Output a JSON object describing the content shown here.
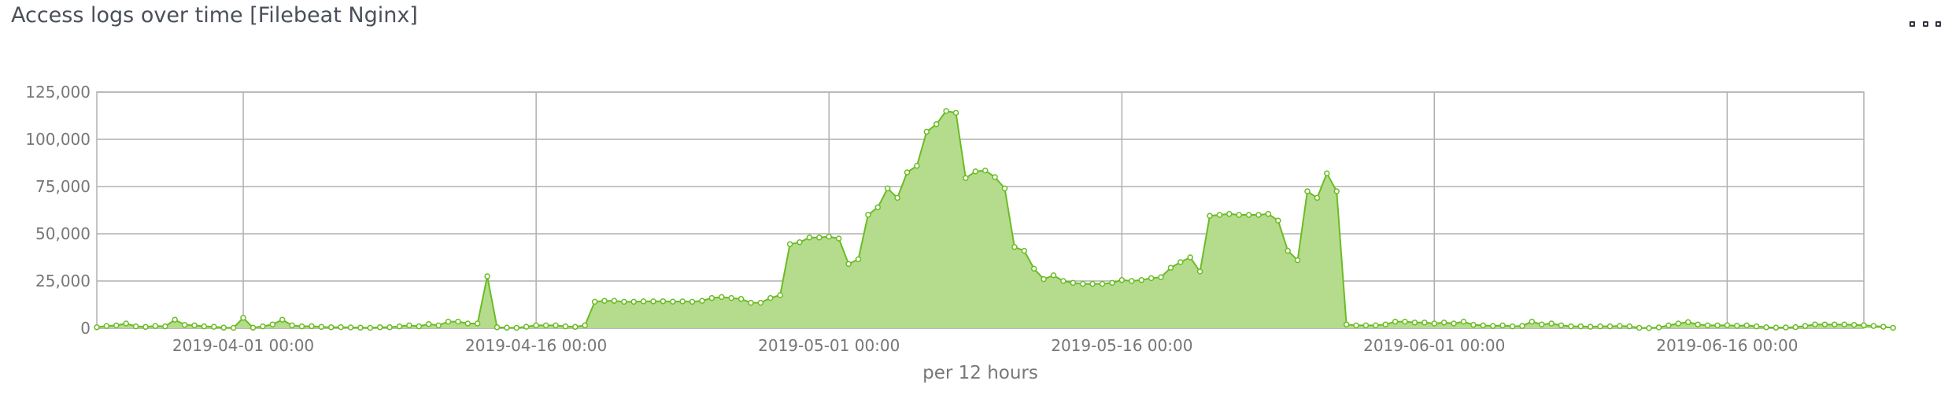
{
  "panel": {
    "title": "Access logs over time [Filebeat Nginx]",
    "menu_icon": "options-menu-icon"
  },
  "colors": {
    "area_fill": "#b5dc8d",
    "line": "#6abc24",
    "grid": "#b0b0b0",
    "axis_text": "#777777"
  },
  "chart_data": {
    "type": "area",
    "title": "Access logs over time [Filebeat Nginx]",
    "xlabel": "per 12 hours",
    "ylabel": "",
    "interval_hours": 12,
    "x_start": "2019-03-24 12:00",
    "x_end": "2019-06-23 00:00",
    "ylim": [
      0,
      125000
    ],
    "y_ticks": [
      0,
      25000,
      50000,
      75000,
      100000,
      125000
    ],
    "y_tick_labels": [
      "0",
      "25,000",
      "50,000",
      "75,000",
      "100,000",
      "125,000"
    ],
    "x_ticks": [
      "2019-04-01 00:00",
      "2019-04-16 00:00",
      "2019-05-01 00:00",
      "2019-05-16 00:00",
      "2019-06-01 00:00",
      "2019-06-16 00:00"
    ],
    "grid": true,
    "legend": "none",
    "series": [
      {
        "values": [
          500,
          1200,
          1500,
          2500,
          1000,
          700,
          1200,
          1000,
          4500,
          1800,
          1500,
          1000,
          800,
          300,
          200,
          5500,
          300,
          1000,
          2000,
          4500,
          1500,
          1000,
          1100,
          700,
          500,
          600,
          400,
          300,
          200,
          500,
          500,
          1000,
          1500,
          1000,
          2200,
          1500,
          3500,
          3500,
          2500,
          2500,
          27500,
          500,
          300,
          200,
          800,
          1500,
          1500,
          1500,
          1000,
          700,
          1500,
          14000,
          14500,
          14500,
          14000,
          14000,
          14200,
          14200,
          14300,
          14100,
          14200,
          14000,
          14500,
          16000,
          16500,
          16000,
          15500,
          13500,
          13500,
          16000,
          17500,
          44500,
          45500,
          48000,
          48000,
          48500,
          47500,
          34000,
          36500,
          60000,
          64000,
          74000,
          69000,
          82500,
          86000,
          104000,
          108000,
          115000,
          114000,
          79500,
          83000,
          83500,
          80000,
          74000,
          43000,
          41000,
          31500,
          26000,
          28000,
          25000,
          24000,
          23500,
          23500,
          23500,
          24000,
          25500,
          25000,
          25500,
          26500,
          27000,
          32000,
          35000,
          37500,
          30000,
          59500,
          60000,
          60500,
          60000,
          60000,
          60000,
          60500,
          57000,
          41000,
          36000,
          72500,
          69000,
          82000,
          72500,
          2000,
          1500,
          1500,
          1500,
          2000,
          3500,
          3500,
          3000,
          3000,
          2500,
          3000,
          2500,
          3500,
          1800,
          1500,
          1200,
          1500,
          1000,
          1200,
          3500,
          2000,
          2500,
          1500,
          1000,
          1000,
          800,
          1000,
          1000,
          1200,
          1000,
          200,
          100,
          400,
          1500,
          2500,
          3200,
          2000,
          1500,
          1500,
          1600,
          1300,
          1500,
          1000,
          500,
          300,
          400,
          600,
          1200,
          2000,
          2000,
          2000,
          2000,
          1800,
          1600,
          1200,
          800,
          200
        ]
      }
    ]
  }
}
